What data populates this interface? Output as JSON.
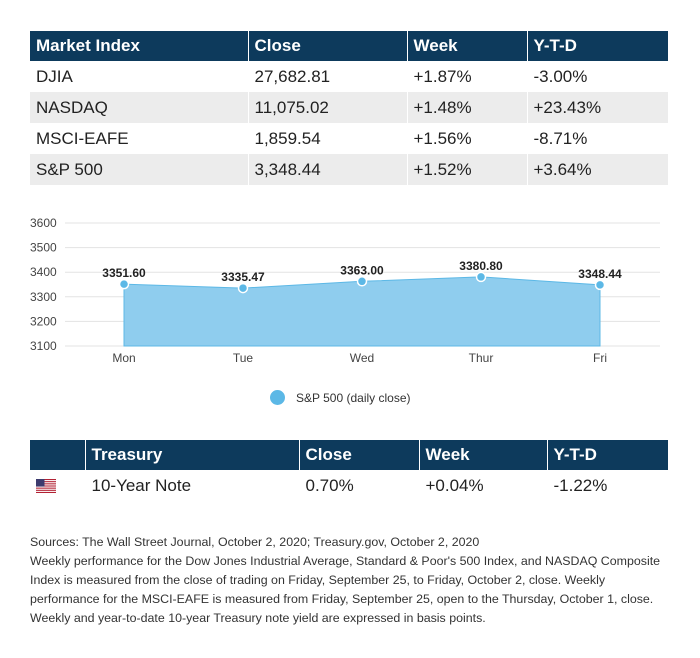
{
  "market_table": {
    "headers": [
      "Market Index",
      "Close",
      "Week",
      "Y-T-D"
    ],
    "rows": [
      [
        "DJIA",
        "27,682.81",
        "+1.87%",
        "-3.00%"
      ],
      [
        "NASDAQ",
        "11,075.02",
        "+1.48%",
        "+23.43%"
      ],
      [
        "MSCI-EAFE",
        "1,859.54",
        "+1.56%",
        "-8.71%"
      ],
      [
        "S&P 500",
        "3,348.44",
        "+1.52%",
        "+3.64%"
      ]
    ]
  },
  "chart_data": {
    "type": "area",
    "categories": [
      "Mon",
      "Tue",
      "Wed",
      "Thur",
      "Fri"
    ],
    "series": [
      {
        "name": "S&P 500 (daily close)",
        "values": [
          3351.6,
          3335.47,
          3363.0,
          3380.8,
          3348.44
        ]
      }
    ],
    "data_labels": [
      "3351.60",
      "3335.47",
      "3363.00",
      "3380.80",
      "3348.44"
    ],
    "y_ticks": [
      "3100",
      "3200",
      "3300",
      "3400",
      "3500",
      "3600"
    ],
    "y_tick_values": [
      3100,
      3200,
      3300,
      3400,
      3500,
      3600
    ],
    "ylim": [
      3100,
      3600
    ],
    "grid": true,
    "legend_position": "bottom",
    "colors": {
      "fill": "#8fcdee",
      "stroke": "#5cb8e6",
      "grid": "#e3e3e3"
    }
  },
  "legend": {
    "label": "S&P 500 (daily close)"
  },
  "treasury_table": {
    "headers": [
      "",
      "Treasury",
      "Close",
      "Week",
      "Y-T-D"
    ],
    "rows": [
      [
        "us-flag-icon",
        "10-Year Note",
        "0.70%",
        "+0.04%",
        "-1.22%"
      ]
    ]
  },
  "notes": {
    "sources": "Sources: The Wall Street Journal, October 2, 2020; Treasury.gov, October 2, 2020",
    "body": "Weekly performance for the Dow Jones Industrial Average, Standard & Poor's 500 Index, and NASDAQ Composite Index is measured from the close of trading on Friday, September 25, to Friday, October 2, close. Weekly performance for the MSCI-EAFE is measured from Friday, September 25, open to the Thursday, October 1, close. Weekly and year-to-date 10-year Treasury note yield are expressed in basis points."
  },
  "colors": {
    "header_bg": "#0d3a5c",
    "alt_row_bg": "#ececec"
  }
}
